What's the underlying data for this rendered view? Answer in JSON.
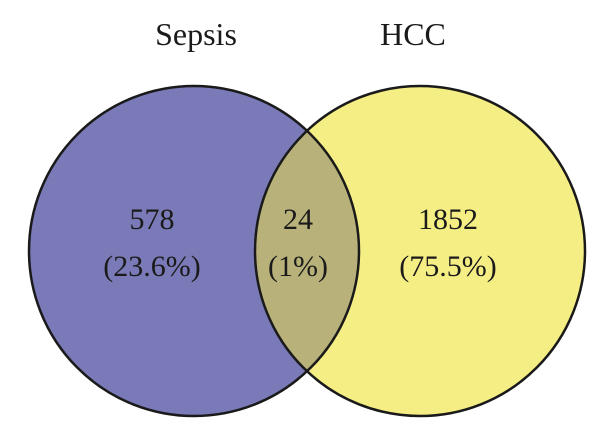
{
  "diagram": {
    "type": "venn",
    "sets": [
      {
        "name": "Sepsis",
        "color": "#7a7ab8"
      },
      {
        "name": "HCC",
        "color": "#f5ee84"
      }
    ],
    "overlap_color": "#b8b27a",
    "outline_color": "#1a1a1a",
    "regions": {
      "sepsis_only": {
        "count": "578",
        "percent": "(23.6%)"
      },
      "both": {
        "count": "24",
        "percent": "(1%)"
      },
      "hcc_only": {
        "count": "1852",
        "percent": "(75.5%)"
      }
    }
  }
}
